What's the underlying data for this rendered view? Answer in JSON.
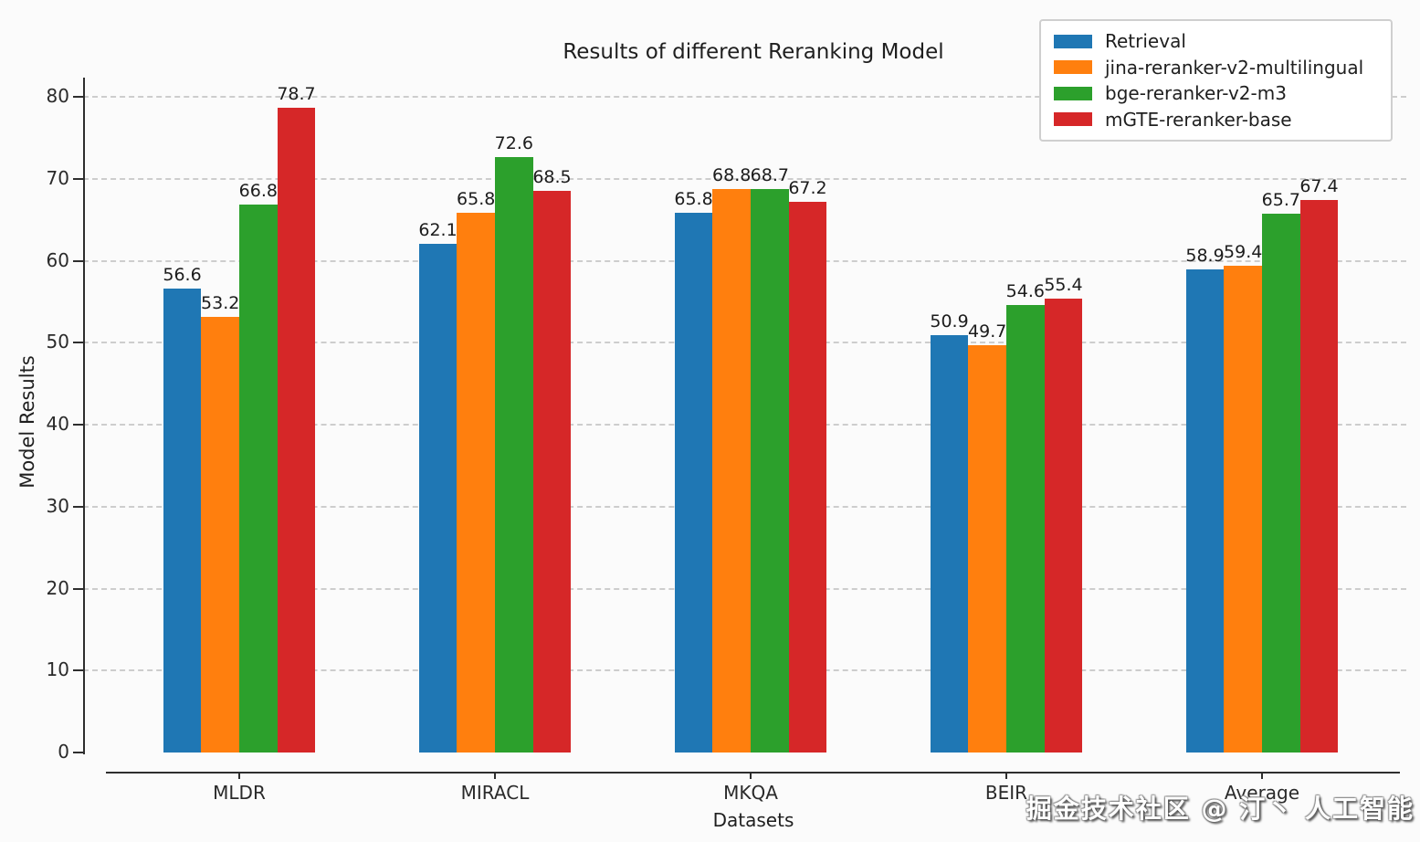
{
  "chart_data": {
    "type": "bar",
    "title": "Results of different Reranking Model",
    "xlabel": "Datasets",
    "ylabel": "Model Results",
    "categories": [
      "MLDR",
      "MIRACL",
      "MKQA",
      "BEIR",
      "Average"
    ],
    "series": [
      {
        "name": "Retrieval",
        "color": "#1f77b4",
        "values": [
          56.6,
          62.1,
          65.8,
          50.9,
          58.9
        ]
      },
      {
        "name": "jina-reranker-v2-multilingual",
        "color": "#ff7f0e",
        "values": [
          53.2,
          65.8,
          68.8,
          49.7,
          59.4
        ]
      },
      {
        "name": "bge-reranker-v2-m3",
        "color": "#2ca02c",
        "values": [
          66.8,
          72.6,
          68.7,
          54.6,
          65.7
        ]
      },
      {
        "name": "mGTE-reranker-base",
        "color": "#d62728",
        "values": [
          78.7,
          68.5,
          67.2,
          55.4,
          67.4
        ]
      }
    ],
    "ylim": [
      0,
      80
    ],
    "yticks": [
      0,
      10,
      20,
      30,
      40,
      50,
      60,
      70,
      80
    ],
    "grid": "horizontal-dashed",
    "legend_position": "upper right",
    "bar_labels": true
  },
  "watermark": {
    "text": "掘金技术社区 @ 汀丶 人工智能"
  }
}
